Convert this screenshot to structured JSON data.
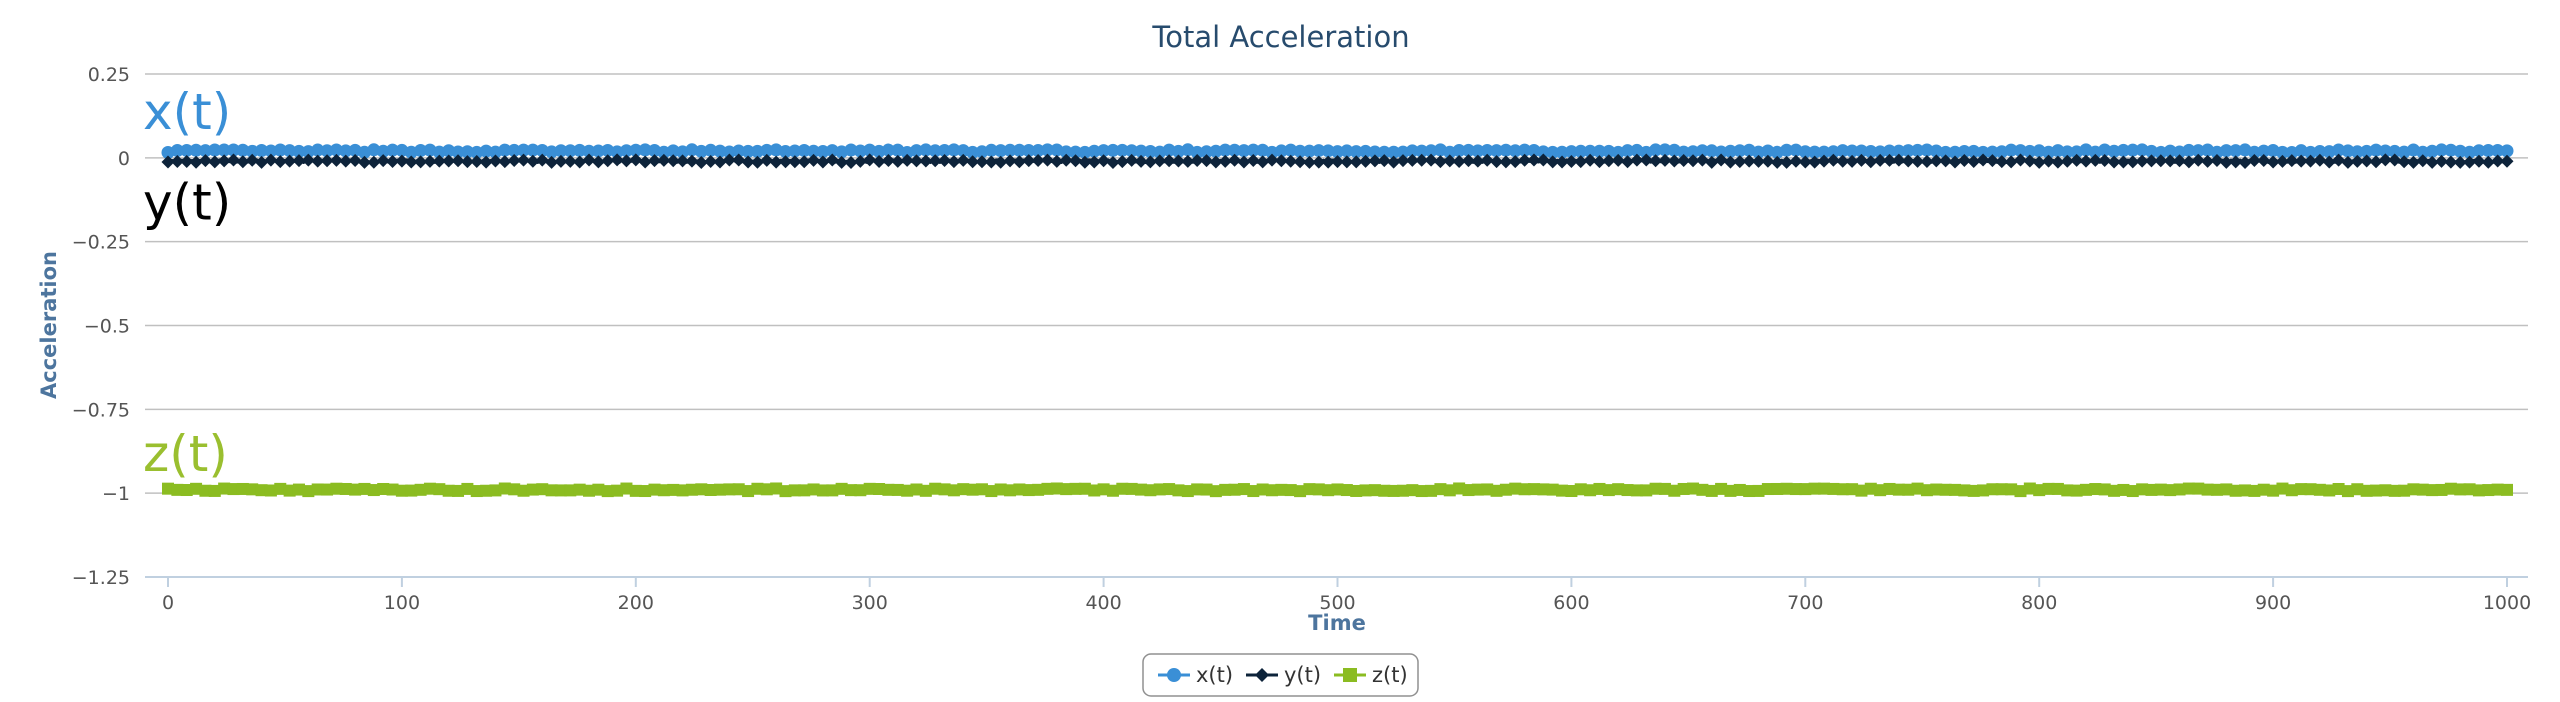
{
  "chart_data": {
    "type": "line",
    "title": "Total Acceleration",
    "xlabel": "Time",
    "ylabel": "Acceleration",
    "xlim": [
      0,
      1000
    ],
    "ylim": [
      -1.25,
      0.25
    ],
    "x_ticks": [
      0,
      100,
      200,
      300,
      400,
      500,
      600,
      700,
      800,
      900,
      1000
    ],
    "y_ticks": [
      0.25,
      0,
      -0.25,
      -0.5,
      -0.75,
      -1,
      -1.25
    ],
    "y_tick_labels": [
      "0.25",
      "0",
      "−0.25",
      "−0.5",
      "−0.75",
      "−1",
      "−1.25"
    ],
    "grid": true,
    "legend_position": "bottom-center",
    "x": {
      "start": 0,
      "end": 1000,
      "step": 1
    },
    "series": [
      {
        "name": "x(t)",
        "marker": "circle",
        "color": "#3a8fd6",
        "approx_value": 0.02,
        "noise": 0.004
      },
      {
        "name": "y(t)",
        "marker": "diamond",
        "color": "#0d233a",
        "approx_value": -0.01,
        "noise": 0.004
      },
      {
        "name": "z(t)",
        "marker": "square",
        "color": "#8bbc21",
        "approx_value": -0.99,
        "noise": 0.004
      }
    ]
  },
  "annotations": [
    {
      "text": "x(t)",
      "color": "#3a8fd6",
      "near_value": 0.14
    },
    {
      "text": "y(t)",
      "color": "#000000",
      "near_value": -0.13
    },
    {
      "text": "z(t)",
      "color": "#9abf2f",
      "near_value": -0.88
    }
  ]
}
